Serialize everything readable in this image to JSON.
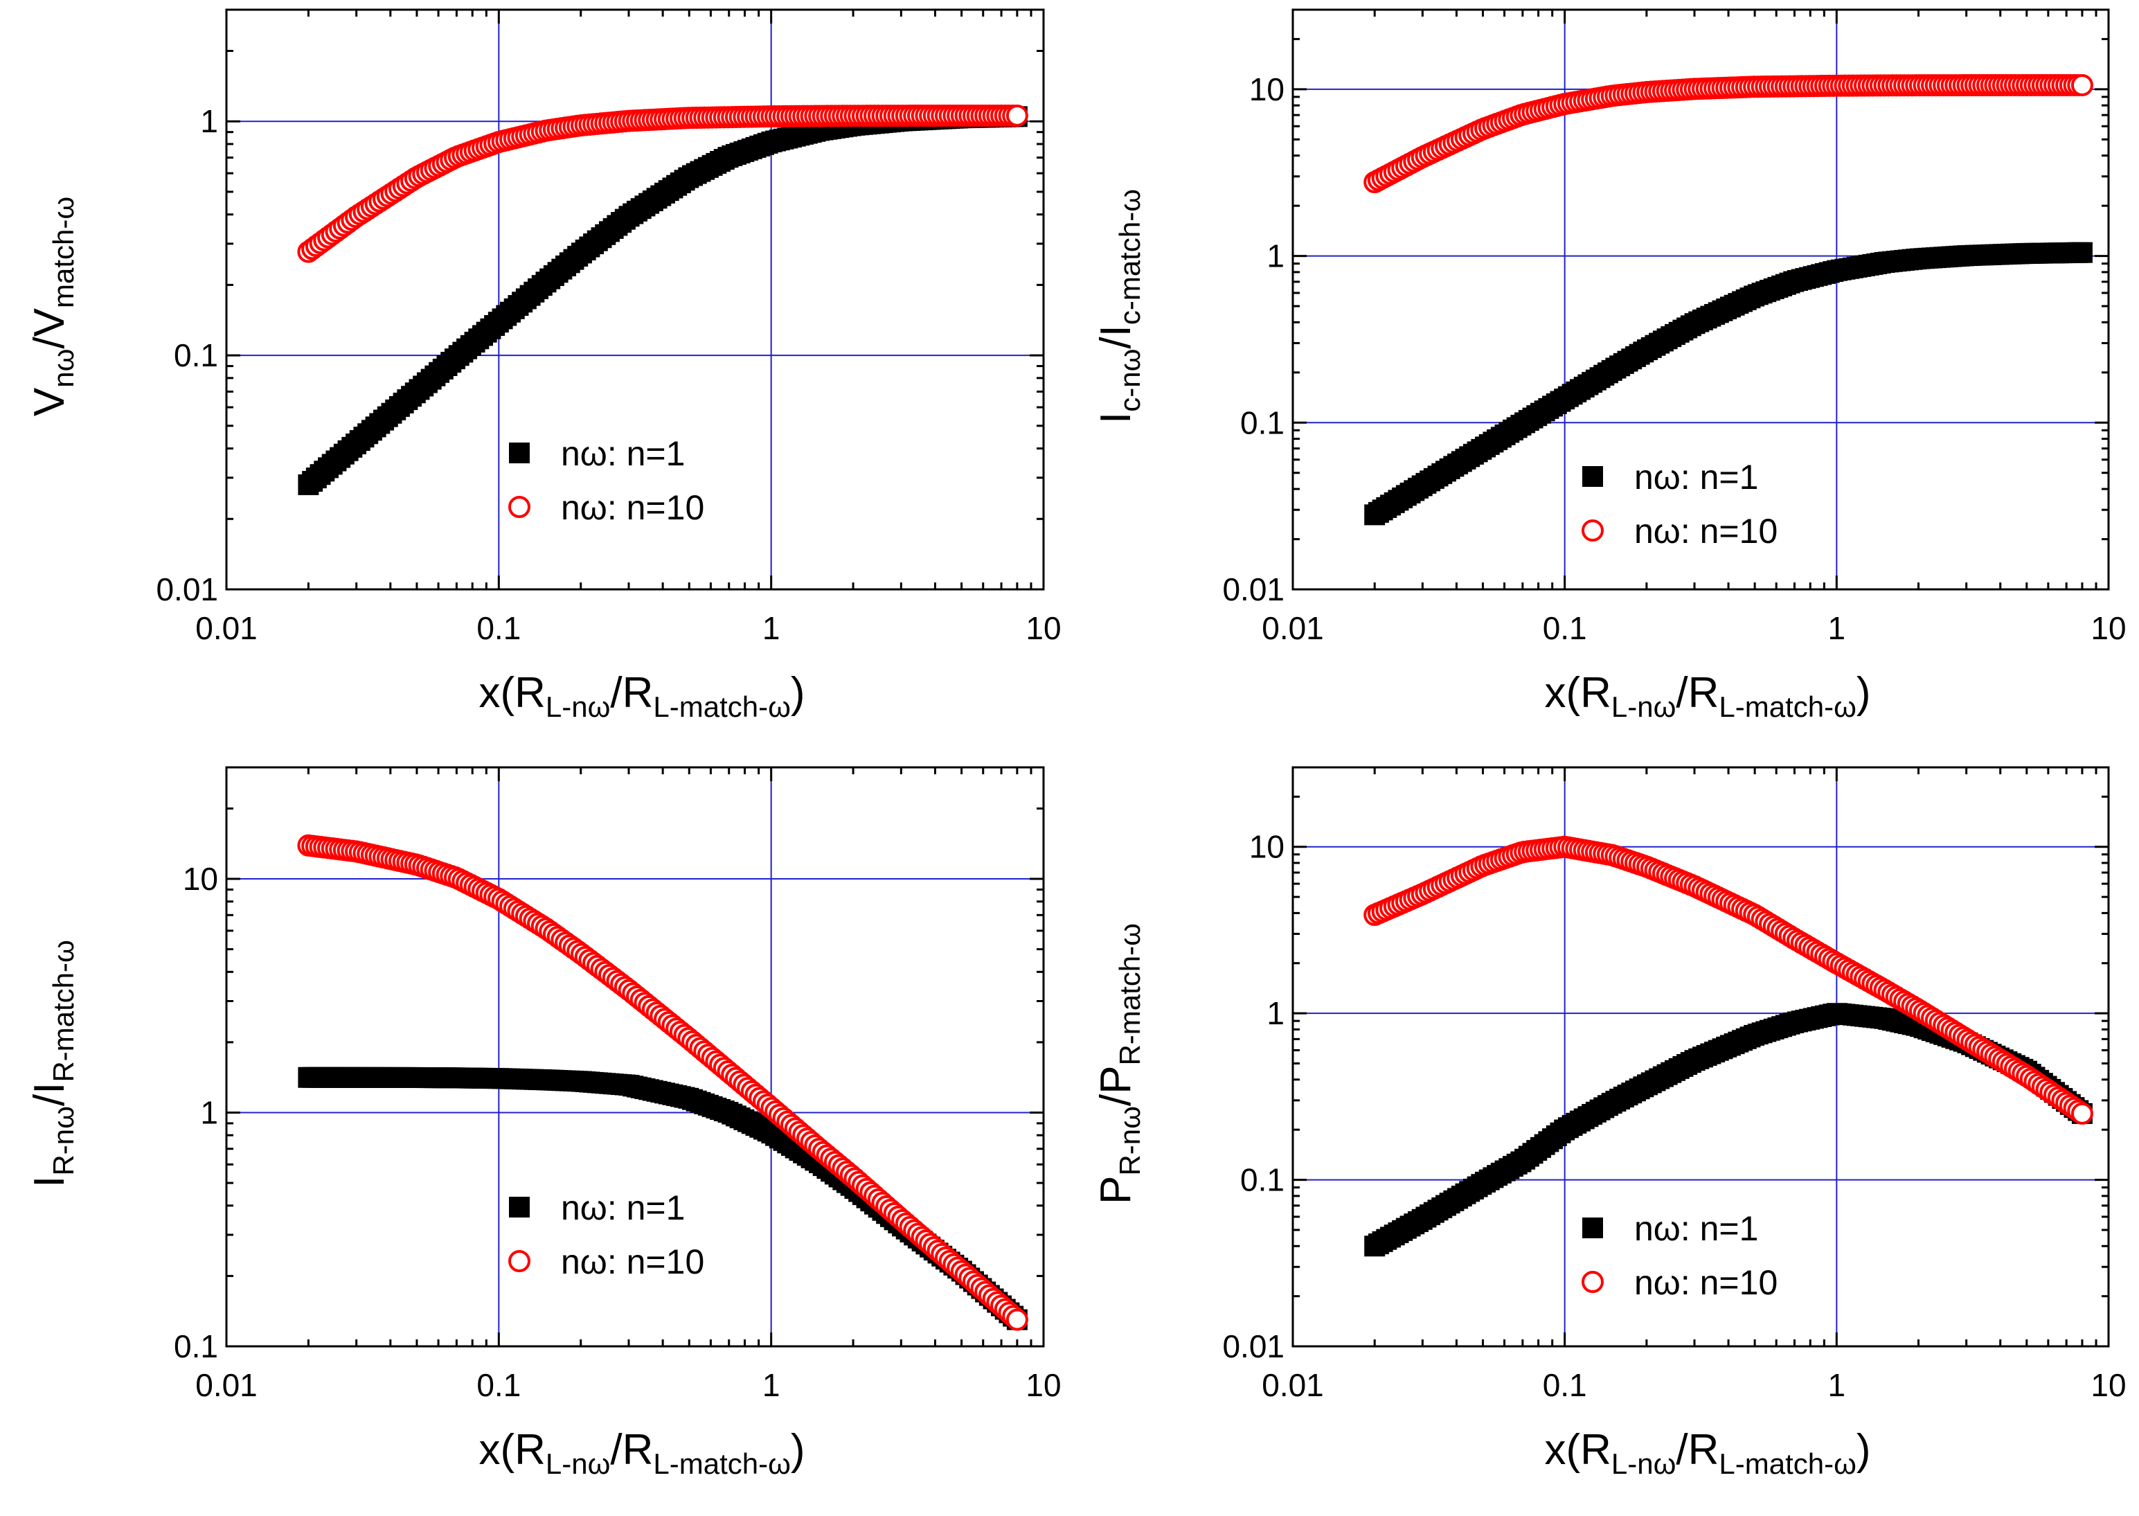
{
  "figure": {
    "layout": "2x2 grid of log-log plots",
    "colors": {
      "series_n1": "#000000",
      "series_n10": "#ff0000",
      "grid": "#2020cc",
      "axis": "#000000"
    }
  },
  "chart_data": [
    {
      "type": "scatter",
      "xscale": "log",
      "yscale": "log",
      "xlim": [
        0.01,
        10
      ],
      "ylim": [
        0.01,
        3
      ],
      "grid": true,
      "xticks": [
        "0.01",
        "0.1",
        "1",
        "10"
      ],
      "yticks": [
        "0.01",
        "0.1",
        "1"
      ],
      "xticks_values": [
        0.01,
        0.1,
        1,
        10
      ],
      "yticks_values": [
        0.01,
        0.1,
        1
      ],
      "xlabel": {
        "base": "x(R",
        "sub1": "L-nω",
        "mid": "/R",
        "sub2": "L-match-ω",
        "end": ")"
      },
      "ylabel": {
        "base": "V",
        "sub1": "nω",
        "mid": "/V",
        "sub2": "match-ω",
        "end": ""
      },
      "legend": {
        "placement": "lower-right",
        "entries": [
          "nω: n=1",
          "nω: n=10"
        ]
      },
      "series": [
        {
          "name": "nω: n=1",
          "marker": "filled-square",
          "color": "#000000",
          "x": [
            0.02,
            0.03,
            0.05,
            0.07,
            0.1,
            0.15,
            0.2,
            0.3,
            0.5,
            0.7,
            1,
            1.5,
            2,
            3,
            5,
            8
          ],
          "y": [
            0.028,
            0.042,
            0.07,
            0.098,
            0.139,
            0.207,
            0.272,
            0.392,
            0.577,
            0.705,
            0.816,
            0.914,
            0.961,
            1.004,
            1.035,
            1.048
          ]
        },
        {
          "name": "nω: n=10",
          "marker": "open-circle",
          "color": "#ff0000",
          "x": [
            0.02,
            0.03,
            0.05,
            0.07,
            0.1,
            0.15,
            0.2,
            0.3,
            0.5,
            0.7,
            1,
            1.5,
            2,
            3,
            5,
            8
          ],
          "y": [
            0.277,
            0.392,
            0.577,
            0.705,
            0.816,
            0.914,
            0.961,
            1.004,
            1.035,
            1.042,
            1.05,
            1.054,
            1.056,
            1.057,
            1.058,
            1.058
          ]
        }
      ]
    },
    {
      "type": "scatter",
      "xscale": "log",
      "yscale": "log",
      "xlim": [
        0.01,
        10
      ],
      "ylim": [
        0.01,
        30
      ],
      "grid": true,
      "xticks": [
        "0.01",
        "0.1",
        "1",
        "10"
      ],
      "yticks": [
        "0.01",
        "0.1",
        "1",
        "10"
      ],
      "xticks_values": [
        0.01,
        0.1,
        1,
        10
      ],
      "yticks_values": [
        0.01,
        0.1,
        1,
        10
      ],
      "xlabel": {
        "base": "x(R",
        "sub1": "L-nω",
        "mid": "/R",
        "sub2": "L-match-ω",
        "end": ")"
      },
      "ylabel": {
        "base": "I",
        "sub1": "c-nω",
        "mid": "/I",
        "sub2": "c-match-ω",
        "end": ""
      },
      "legend": {
        "placement": "lower-right",
        "entries": [
          "nω: n=1",
          "nω: n=10"
        ]
      },
      "series": [
        {
          "name": "nω: n=1",
          "marker": "filled-square",
          "color": "#000000",
          "x": [
            0.02,
            0.03,
            0.05,
            0.07,
            0.1,
            0.15,
            0.2,
            0.3,
            0.5,
            0.7,
            1,
            1.5,
            2,
            3,
            5,
            8
          ],
          "y": [
            0.028,
            0.042,
            0.07,
            0.098,
            0.139,
            0.207,
            0.272,
            0.392,
            0.577,
            0.705,
            0.816,
            0.914,
            0.961,
            1.004,
            1.035,
            1.048
          ]
        },
        {
          "name": "nω: n=10",
          "marker": "open-circle",
          "color": "#ff0000",
          "x": [
            0.02,
            0.03,
            0.05,
            0.07,
            0.1,
            0.15,
            0.2,
            0.3,
            0.5,
            0.7,
            1,
            1.5,
            2,
            3,
            5,
            8
          ],
          "y": [
            2.77,
            3.92,
            5.77,
            7.05,
            8.16,
            9.14,
            9.61,
            10.04,
            10.35,
            10.42,
            10.5,
            10.54,
            10.56,
            10.57,
            10.58,
            10.58
          ]
        }
      ]
    },
    {
      "type": "scatter",
      "xscale": "log",
      "yscale": "log",
      "xlim": [
        0.01,
        10
      ],
      "ylim": [
        0.1,
        30
      ],
      "grid": true,
      "xticks": [
        "0.01",
        "0.1",
        "1",
        "10"
      ],
      "yticks": [
        "0.1",
        "1",
        "10"
      ],
      "xticks_values": [
        0.01,
        0.1,
        1,
        10
      ],
      "yticks_values": [
        0.1,
        1,
        10
      ],
      "xlabel": {
        "base": "x(R",
        "sub1": "L-nω",
        "mid": "/R",
        "sub2": "L-match-ω",
        "end": ")"
      },
      "ylabel": {
        "base": "I",
        "sub1": "R-nω",
        "mid": "/I",
        "sub2": "R-match-ω",
        "end": ""
      },
      "legend": {
        "placement": "lower-right",
        "entries": [
          "nω: n=1",
          "nω: n=10"
        ]
      },
      "series": [
        {
          "name": "nω: n=1",
          "marker": "filled-square",
          "color": "#000000",
          "x": [
            0.02,
            0.03,
            0.05,
            0.07,
            0.1,
            0.15,
            0.2,
            0.3,
            0.5,
            0.7,
            1,
            1.5,
            2,
            3,
            5,
            8
          ],
          "y": [
            1.414,
            1.413,
            1.412,
            1.408,
            1.4,
            1.38,
            1.36,
            1.31,
            1.15,
            1.0,
            0.82,
            0.61,
            0.48,
            0.33,
            0.21,
            0.13
          ]
        },
        {
          "name": "nω: n=10",
          "marker": "open-circle",
          "color": "#ff0000",
          "x": [
            0.02,
            0.03,
            0.05,
            0.07,
            0.1,
            0.15,
            0.2,
            0.3,
            0.5,
            0.7,
            1,
            1.5,
            2,
            3,
            5,
            8
          ],
          "y": [
            13.9,
            13.1,
            11.5,
            10.1,
            8.2,
            6.1,
            4.8,
            3.35,
            2.07,
            1.49,
            1.05,
            0.7,
            0.53,
            0.35,
            0.21,
            0.13
          ]
        }
      ]
    },
    {
      "type": "scatter",
      "xscale": "log",
      "yscale": "log",
      "xlim": [
        0.01,
        10
      ],
      "ylim": [
        0.01,
        30
      ],
      "grid": true,
      "xticks": [
        "0.01",
        "0.1",
        "1",
        "10"
      ],
      "yticks": [
        "0.01",
        "0.1",
        "1",
        "10"
      ],
      "xticks_values": [
        0.01,
        0.1,
        1,
        10
      ],
      "yticks_values": [
        0.01,
        0.1,
        1,
        10
      ],
      "xlabel": {
        "base": "x(R",
        "sub1": "L-nω",
        "mid": "/R",
        "sub2": "L-match-ω",
        "end": ")"
      },
      "ylabel": {
        "base": "P",
        "sub1": "R-nω",
        "mid": "/P",
        "sub2": "R-match-ω",
        "end": ""
      },
      "legend": {
        "placement": "lower-right",
        "entries": [
          "nω: n=1",
          "nω: n=10"
        ]
      },
      "series": [
        {
          "name": "nω: n=1",
          "marker": "filled-square",
          "color": "#000000",
          "x": [
            0.02,
            0.03,
            0.05,
            0.07,
            0.1,
            0.15,
            0.2,
            0.3,
            0.5,
            0.7,
            1,
            1.5,
            2,
            3,
            5,
            8
          ],
          "y": [
            0.04,
            0.058,
            0.095,
            0.13,
            0.2,
            0.29,
            0.37,
            0.52,
            0.74,
            0.88,
            1.0,
            0.93,
            0.84,
            0.67,
            0.45,
            0.25
          ]
        },
        {
          "name": "nω: n=10",
          "marker": "open-circle",
          "color": "#ff0000",
          "x": [
            0.02,
            0.03,
            0.05,
            0.07,
            0.1,
            0.15,
            0.2,
            0.3,
            0.5,
            0.7,
            1,
            1.5,
            2,
            3,
            5,
            8
          ],
          "y": [
            3.9,
            5.2,
            7.7,
            9.3,
            10.0,
            8.9,
            7.6,
            5.8,
            3.9,
            2.8,
            2.0,
            1.38,
            1.05,
            0.7,
            0.42,
            0.25
          ]
        }
      ]
    }
  ]
}
